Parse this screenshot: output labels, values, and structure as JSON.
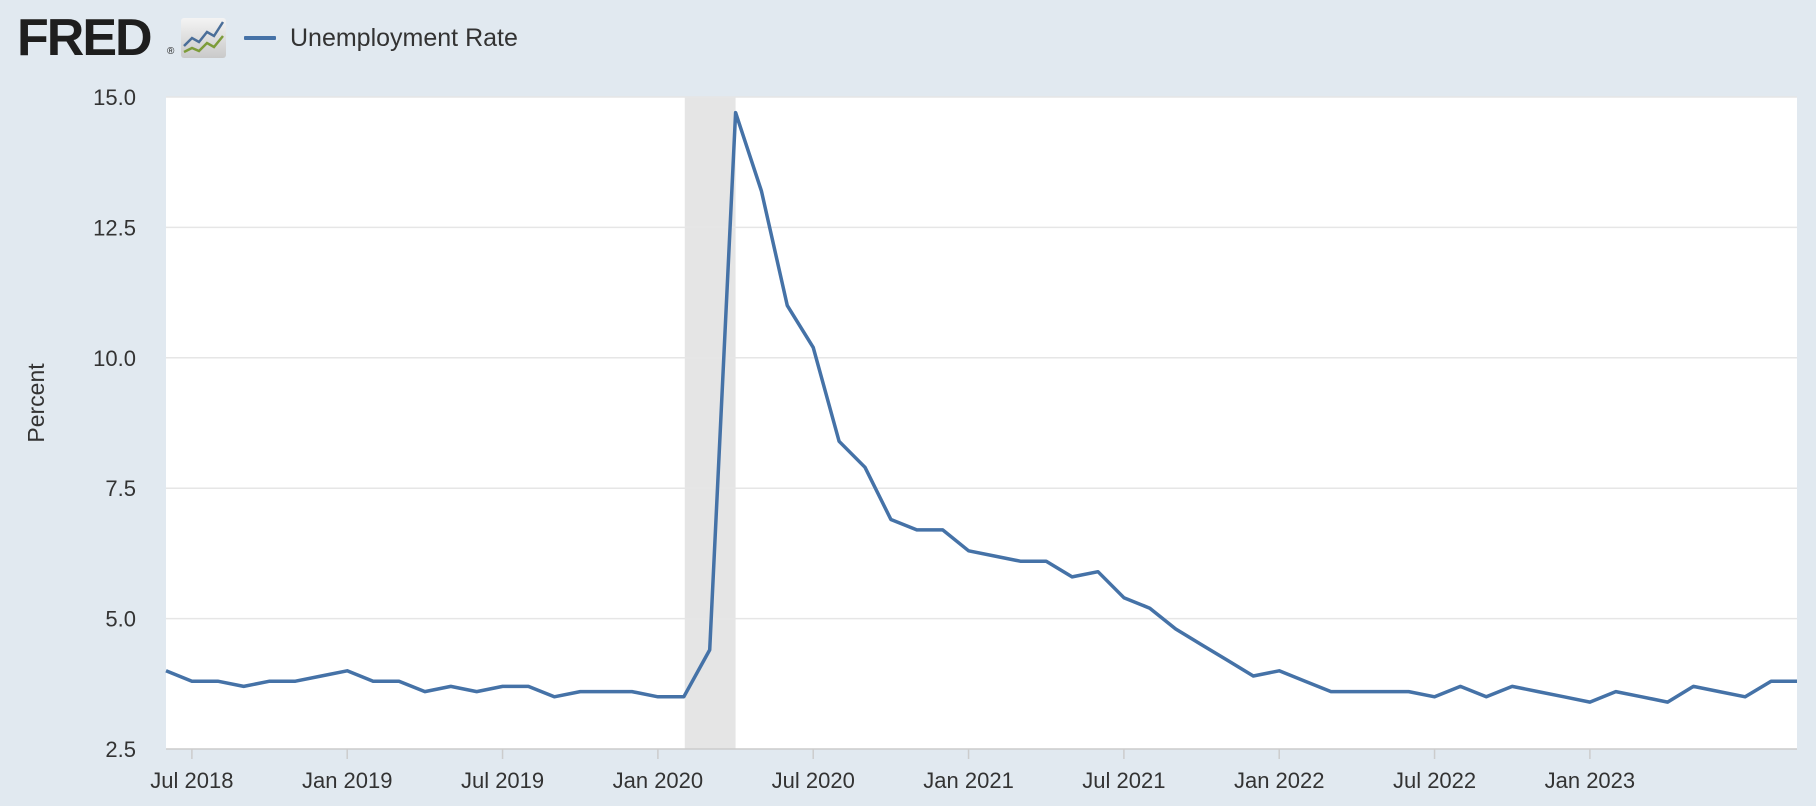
{
  "header": {
    "logo_text": "FRED",
    "logo_reg": "®",
    "logo_icon": "line-graph-icon"
  },
  "colors": {
    "series": "#4572a7",
    "recession": "#e5e5e5",
    "background": "#e1e9f0",
    "plot_background": "#ffffff",
    "grid": "#e6e6e6"
  },
  "chart_data": {
    "type": "line",
    "title": "",
    "xlabel": "",
    "ylabel": "Percent",
    "ylim": [
      2.5,
      15.0
    ],
    "y_ticks": [
      2.5,
      5.0,
      7.5,
      10.0,
      12.5,
      15.0
    ],
    "y_tick_labels": [
      "2.5",
      "5.0",
      "7.5",
      "10.0",
      "12.5",
      "15.0"
    ],
    "x_range": [
      "2018-06",
      "2023-09"
    ],
    "x_ticks": [
      {
        "date": "2018-07",
        "label": "Jul 2018"
      },
      {
        "date": "2019-01",
        "label": "Jan 2019"
      },
      {
        "date": "2019-07",
        "label": "Jul 2019"
      },
      {
        "date": "2020-01",
        "label": "Jan 2020"
      },
      {
        "date": "2020-07",
        "label": "Jul 2020"
      },
      {
        "date": "2021-01",
        "label": "Jan 2021"
      },
      {
        "date": "2021-07",
        "label": "Jul 2021"
      },
      {
        "date": "2022-01",
        "label": "Jan 2022"
      },
      {
        "date": "2022-07",
        "label": "Jul 2022"
      },
      {
        "date": "2023-01",
        "label": "Jan 2023"
      }
    ],
    "grid": true,
    "legend": "top-left",
    "recession_shading": [
      {
        "start": "2020-02",
        "end": "2020-04"
      }
    ],
    "series": [
      {
        "name": "Unemployment Rate",
        "x": [
          "2018-06",
          "2018-07",
          "2018-08",
          "2018-09",
          "2018-10",
          "2018-11",
          "2018-12",
          "2019-01",
          "2019-02",
          "2019-03",
          "2019-04",
          "2019-05",
          "2019-06",
          "2019-07",
          "2019-08",
          "2019-09",
          "2019-10",
          "2019-11",
          "2019-12",
          "2020-01",
          "2020-02",
          "2020-03",
          "2020-04",
          "2020-05",
          "2020-06",
          "2020-07",
          "2020-08",
          "2020-09",
          "2020-10",
          "2020-11",
          "2020-12",
          "2021-01",
          "2021-02",
          "2021-03",
          "2021-04",
          "2021-05",
          "2021-06",
          "2021-07",
          "2021-08",
          "2021-09",
          "2021-10",
          "2021-11",
          "2021-12",
          "2022-01",
          "2022-02",
          "2022-03",
          "2022-04",
          "2022-05",
          "2022-06",
          "2022-07",
          "2022-08",
          "2022-09",
          "2022-10",
          "2022-11",
          "2022-12",
          "2023-01",
          "2023-02",
          "2023-03",
          "2023-04",
          "2023-05",
          "2023-06",
          "2023-07",
          "2023-08",
          "2023-09"
        ],
        "values": [
          4.0,
          3.8,
          3.8,
          3.7,
          3.8,
          3.8,
          3.9,
          4.0,
          3.8,
          3.8,
          3.6,
          3.7,
          3.6,
          3.7,
          3.7,
          3.5,
          3.6,
          3.6,
          3.6,
          3.5,
          3.5,
          4.4,
          14.7,
          13.2,
          11.0,
          10.2,
          8.4,
          7.9,
          6.9,
          6.7,
          6.7,
          6.3,
          6.2,
          6.1,
          6.1,
          5.8,
          5.9,
          5.4,
          5.2,
          4.8,
          4.5,
          4.2,
          3.9,
          4.0,
          3.8,
          3.6,
          3.6,
          3.6,
          3.6,
          3.5,
          3.7,
          3.5,
          3.7,
          3.6,
          3.5,
          3.4,
          3.6,
          3.5,
          3.4,
          3.7,
          3.6,
          3.5,
          3.8,
          3.8
        ]
      }
    ]
  }
}
